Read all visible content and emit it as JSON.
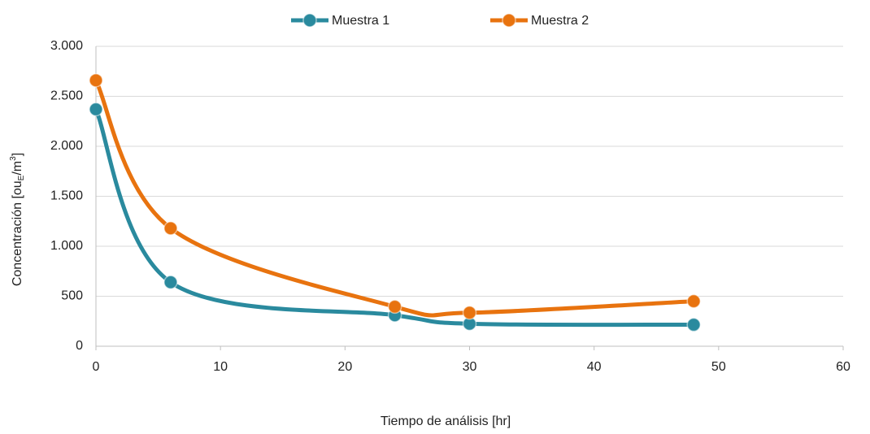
{
  "chart_data": {
    "type": "line",
    "xlabel": "Tiempo de análisis [hr]",
    "ylabel": [
      "Concentración [ou",
      "E",
      "/m",
      "3",
      "]"
    ],
    "x": [
      0,
      6,
      24,
      30,
      48
    ],
    "series": [
      {
        "name": "Muestra 1",
        "color": "#2a8a9e",
        "values": [
          2370,
          640,
          310,
          225,
          215
        ]
      },
      {
        "name": "Muestra 2",
        "color": "#e8730f",
        "values": [
          2660,
          1180,
          395,
          335,
          450
        ]
      }
    ],
    "xlim": [
      0,
      60
    ],
    "xticks": [
      0,
      10,
      20,
      30,
      40,
      50,
      60
    ],
    "ylim": [
      0,
      3000
    ],
    "yticks": [
      0,
      500,
      {
        "value": 1000,
        "label": "1.000"
      },
      {
        "value": 1500,
        "label": "1.500"
      },
      {
        "value": 2000,
        "label": "2.000"
      },
      {
        "value": 2500,
        "label": "2.500"
      },
      {
        "value": 3000,
        "label": "3.000"
      }
    ],
    "grid": true,
    "smooth": true,
    "legend": "top"
  }
}
